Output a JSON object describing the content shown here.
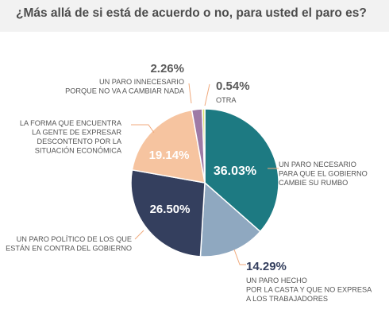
{
  "header": {
    "title": "¿Más allá de si está de acuerdo o no, para usted el paro es?"
  },
  "chart_data": {
    "type": "pie",
    "start_angle_deg": 0,
    "direction": "clockwise",
    "slices": [
      {
        "label": "UN PARO NECESARIO PARA QUE EL GOBIERNO CAMBIE SU RUMBO",
        "label_lines": [
          "UN PARO NECESARIO",
          "PARA QUE EL GOBIERNO",
          "CAMBIE SU RUMBO"
        ],
        "value": 36.03,
        "value_label": "36.03%",
        "color": "#1d7a82"
      },
      {
        "label": "UN PARO HECHO POR LA CASTA Y QUE NO EXPRESA A LOS TRABAJADORES",
        "label_lines": [
          "UN PARO HECHO",
          "POR LA CASTA Y QUE NO EXPRESA",
          "A LOS TRABAJADORES"
        ],
        "value": 14.29,
        "value_label": "14.29%",
        "color": "#8fa8c0"
      },
      {
        "label": "UN PARO POLÍTICO DE LOS QUE ESTÁN EN CONTRA DEL GOBIERNO",
        "label_lines": [
          "UN PARO POLÍTICO DE LOS QUE",
          "ESTÁN EN CONTRA DEL GOBIERNO"
        ],
        "value": 26.5,
        "value_label": "26.50%",
        "color": "#343f5e"
      },
      {
        "label": "LA FORMA QUE ENCUENTRA LA GENTE DE EXPRESAR DESCONTENTO POR LA SITUACIÓN ECONÓMICA",
        "label_lines": [
          "LA FORMA QUE ENCUENTRA",
          "LA GENTE DE EXPRESAR",
          "DESCONTENTO POR LA",
          "SITUACIÓN ECONÓMICA"
        ],
        "value": 19.14,
        "value_label": "19.14%",
        "color": "#f6c4a0"
      },
      {
        "label": "UN PARO INNECESARIO PORQUE NO VA A CAMBIAR NADA",
        "label_lines": [
          "UN PARO INNECESARIO",
          "PORQUE NO VA A CAMBIAR NADA"
        ],
        "value": 2.26,
        "value_label": "2.26%",
        "color": "#9e7aa6"
      },
      {
        "label": "OTRA",
        "label_lines": [
          "OTRA"
        ],
        "value": 0.54,
        "value_label": "0.54%",
        "color": "#d9df6e"
      }
    ]
  }
}
